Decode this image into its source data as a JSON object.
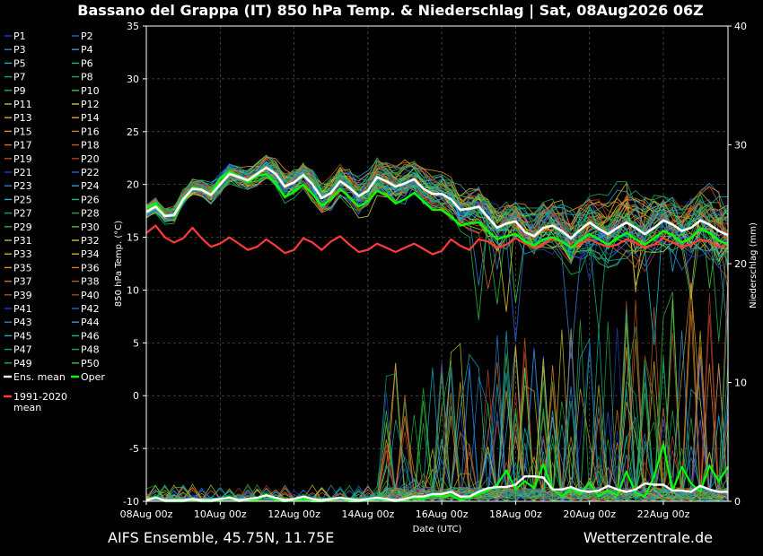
{
  "chart_data": {
    "type": "line",
    "title": "Bassano del Grappa  (IT)  850 hPa Temp. & Niederschlag | Sat, 08Aug2026 06Z",
    "xlabel": "Date (UTC)",
    "ylabel": "850 hPa Temp. (°C)",
    "y2label": "Niederschlag (mm)",
    "ylim": [
      -10,
      35
    ],
    "y2lim": [
      0,
      40
    ],
    "yticks": [
      "35",
      "30",
      "25",
      "20",
      "15",
      "10",
      "5",
      "0",
      "-5",
      "-10"
    ],
    "y2ticks": [
      "40",
      "30",
      "20",
      "10",
      "0"
    ],
    "xticks": [
      "08Aug 00z",
      "10Aug 00z",
      "12Aug 00z",
      "14Aug 00z",
      "16Aug 00z",
      "18Aug 00z",
      "20Aug 00z",
      "22Aug 00z"
    ],
    "grid": true,
    "legend_position": "left-outside",
    "members": [
      {
        "name": "P1",
        "color": "#1f3fbf"
      },
      {
        "name": "P2",
        "color": "#2a5de0"
      },
      {
        "name": "P3",
        "color": "#2b7fd0"
      },
      {
        "name": "P4",
        "color": "#2a9fd8"
      },
      {
        "name": "P5",
        "color": "#18b4c4"
      },
      {
        "name": "P6",
        "color": "#12b89a"
      },
      {
        "name": "P7",
        "color": "#13a870"
      },
      {
        "name": "P8",
        "color": "#1ea84a"
      },
      {
        "name": "P9",
        "color": "#22b43a"
      },
      {
        "name": "P10",
        "color": "#3cc23a"
      },
      {
        "name": "P11",
        "color": "#b4c832"
      },
      {
        "name": "P12",
        "color": "#d2c22a"
      },
      {
        "name": "P13",
        "color": "#d6b02a"
      },
      {
        "name": "P14",
        "color": "#e0a422"
      },
      {
        "name": "P15",
        "color": "#e0902a"
      },
      {
        "name": "P16",
        "color": "#d2782a"
      },
      {
        "name": "P17",
        "color": "#d06a28"
      },
      {
        "name": "P18",
        "color": "#c85624"
      },
      {
        "name": "P19",
        "color": "#b84a28"
      },
      {
        "name": "P20",
        "color": "#b03a2a"
      },
      {
        "name": "P21",
        "color": "#1f3fbf"
      },
      {
        "name": "P22",
        "color": "#2a5de0"
      },
      {
        "name": "P23",
        "color": "#2b7fd0"
      },
      {
        "name": "P24",
        "color": "#2a9fd8"
      },
      {
        "name": "P25",
        "color": "#18b4c4"
      },
      {
        "name": "P26",
        "color": "#12b89a"
      },
      {
        "name": "P27",
        "color": "#13a870"
      },
      {
        "name": "P28",
        "color": "#1ea84a"
      },
      {
        "name": "P29",
        "color": "#22b43a"
      },
      {
        "name": "P30",
        "color": "#3cc23a"
      },
      {
        "name": "P31",
        "color": "#b4c832"
      },
      {
        "name": "P32",
        "color": "#d2c22a"
      },
      {
        "name": "P33",
        "color": "#d6b02a"
      },
      {
        "name": "P34",
        "color": "#e0a422"
      },
      {
        "name": "P35",
        "color": "#e0902a"
      },
      {
        "name": "P36",
        "color": "#d2782a"
      },
      {
        "name": "P37",
        "color": "#d06a28"
      },
      {
        "name": "P38",
        "color": "#c85624"
      },
      {
        "name": "P39",
        "color": "#b84a28"
      },
      {
        "name": "P40",
        "color": "#b03a2a"
      },
      {
        "name": "P41",
        "color": "#1f3fbf"
      },
      {
        "name": "P42",
        "color": "#2a5de0"
      },
      {
        "name": "P43",
        "color": "#2b7fd0"
      },
      {
        "name": "P44",
        "color": "#2a9fd8"
      },
      {
        "name": "P45",
        "color": "#18b4c4"
      },
      {
        "name": "P46",
        "color": "#12b89a"
      },
      {
        "name": "P47",
        "color": "#13a870"
      },
      {
        "name": "P48",
        "color": "#1ea84a"
      },
      {
        "name": "P49",
        "color": "#22b43a"
      },
      {
        "name": "P50",
        "color": "#3cc23a"
      }
    ],
    "special_series": [
      {
        "name": "Ens. mean",
        "color": "#ffffff"
      },
      {
        "name": "Oper",
        "color": "#00ff00"
      },
      {
        "name": "1991-2020 mean",
        "color": "#ff3b3b"
      }
    ],
    "x_hours": [
      0,
      6,
      12,
      18,
      24,
      30,
      36,
      42,
      48,
      54,
      60,
      66,
      72,
      78,
      84,
      90,
      96,
      102,
      108,
      114,
      120,
      126,
      132,
      138,
      144,
      150,
      156,
      162,
      168,
      174,
      180,
      186,
      192,
      198,
      204,
      210,
      216,
      222,
      228,
      234,
      240,
      246,
      252,
      258,
      264,
      270,
      276,
      282,
      288,
      294,
      300,
      306,
      312,
      318,
      324,
      330,
      336,
      342,
      348,
      354,
      360,
      366,
      372,
      378
    ],
    "ens_mean_temp": [
      17.4,
      17.9,
      17.0,
      17.1,
      18.6,
      19.6,
      19.5,
      19.0,
      20.0,
      21.0,
      20.7,
      20.4,
      21.0,
      21.6,
      21.0,
      19.8,
      20.2,
      20.9,
      20.0,
      18.7,
      19.2,
      20.3,
      19.7,
      18.9,
      19.4,
      20.7,
      20.3,
      19.8,
      20.1,
      20.5,
      19.6,
      19.1,
      19.1,
      18.6,
      17.6,
      17.7,
      17.9,
      16.9,
      15.9,
      16.3,
      16.5,
      15.5,
      15.1,
      15.9,
      16.1,
      15.6,
      14.9,
      15.7,
      16.4,
      15.8,
      15.3,
      15.9,
      16.4,
      15.9,
      15.3,
      15.9,
      16.6,
      16.2,
      15.6,
      15.9,
      16.6,
      16.2,
      15.6,
      15.2
    ],
    "oper_temp": [
      17.8,
      18.2,
      17.1,
      17.0,
      18.4,
      19.7,
      19.5,
      19.1,
      20.6,
      21.2,
      20.8,
      20.2,
      20.8,
      21.0,
      20.1,
      18.8,
      19.3,
      20.0,
      19.1,
      18.0,
      18.6,
      19.6,
      18.8,
      17.9,
      18.4,
      19.4,
      19.0,
      18.2,
      18.6,
      19.2,
      18.4,
      17.6,
      17.6,
      17.0,
      16.1,
      16.3,
      16.4,
      15.6,
      14.8,
      15.1,
      15.3,
      14.6,
      14.2,
      14.8,
      15.0,
      14.6,
      14.0,
      14.7,
      15.3,
      14.8,
      14.3,
      14.9,
      15.4,
      14.8,
      14.3,
      14.9,
      15.6,
      15.2,
      14.5,
      14.9,
      15.8,
      15.4,
      14.7,
      14.3
    ],
    "clim_mean_temp": [
      15.4,
      16.1,
      15.0,
      14.5,
      14.9,
      15.9,
      14.9,
      14.1,
      14.4,
      15.0,
      14.4,
      13.8,
      14.1,
      14.8,
      14.2,
      13.5,
      13.8,
      14.9,
      14.5,
      13.8,
      14.6,
      15.1,
      14.3,
      13.6,
      13.8,
      14.4,
      14.0,
      13.6,
      14.0,
      14.4,
      13.9,
      13.4,
      13.7,
      14.8,
      14.2,
      13.8,
      14.8,
      14.6,
      14.0,
      14.3,
      14.9,
      14.4,
      14.0,
      14.3,
      14.9,
      14.5,
      14.1,
      14.4,
      14.8,
      14.4,
      14.1,
      14.3,
      14.8,
      14.5,
      14.0,
      14.3,
      14.9,
      14.5,
      14.1,
      14.3,
      14.8,
      14.6,
      14.1,
      14.3
    ],
    "ens_mean_precip": [
      0.1,
      0.3,
      0.1,
      0.1,
      0.1,
      0.2,
      0.1,
      0.1,
      0.2,
      0.3,
      0.1,
      0.2,
      0.3,
      0.5,
      0.3,
      0.1,
      0.2,
      0.4,
      0.2,
      0.1,
      0.2,
      0.3,
      0.2,
      0.1,
      0.2,
      0.3,
      0.2,
      0.1,
      0.2,
      0.4,
      0.4,
      0.6,
      0.6,
      0.8,
      0.4,
      0.4,
      0.8,
      1.1,
      1.2,
      1.2,
      1.4,
      2.1,
      2.1,
      2.0,
      1.0,
      1.0,
      1.2,
      0.9,
      0.8,
      0.9,
      1.3,
      1.0,
      0.8,
      1.0,
      1.5,
      1.4,
      1.4,
      0.9,
      0.9,
      0.8,
      1.3,
      1.0,
      0.8,
      0.8
    ],
    "oper_precip": [
      0.0,
      0.4,
      0.0,
      0.0,
      0.0,
      0.1,
      0.0,
      0.0,
      0.1,
      0.4,
      0.0,
      0.1,
      0.1,
      0.6,
      0.1,
      0.0,
      0.1,
      0.2,
      0.0,
      0.0,
      0.1,
      0.3,
      0.0,
      0.0,
      0.1,
      0.2,
      0.1,
      0.0,
      0.1,
      0.3,
      0.2,
      0.5,
      0.4,
      0.5,
      0.1,
      0.3,
      0.6,
      0.9,
      1.4,
      2.6,
      1.0,
      1.7,
      1.1,
      3.1,
      1.0,
      0.4,
      1.1,
      0.6,
      1.6,
      0.4,
      0.9,
      0.5,
      2.5,
      0.7,
      0.4,
      2.1,
      4.8,
      0.9,
      2.9,
      1.5,
      0.8,
      3.0,
      1.7,
      2.9
    ]
  },
  "footer": {
    "model": "AIFS Ensemble, 45.75N, 11.75E",
    "source": "Wetterzentrale.de"
  }
}
